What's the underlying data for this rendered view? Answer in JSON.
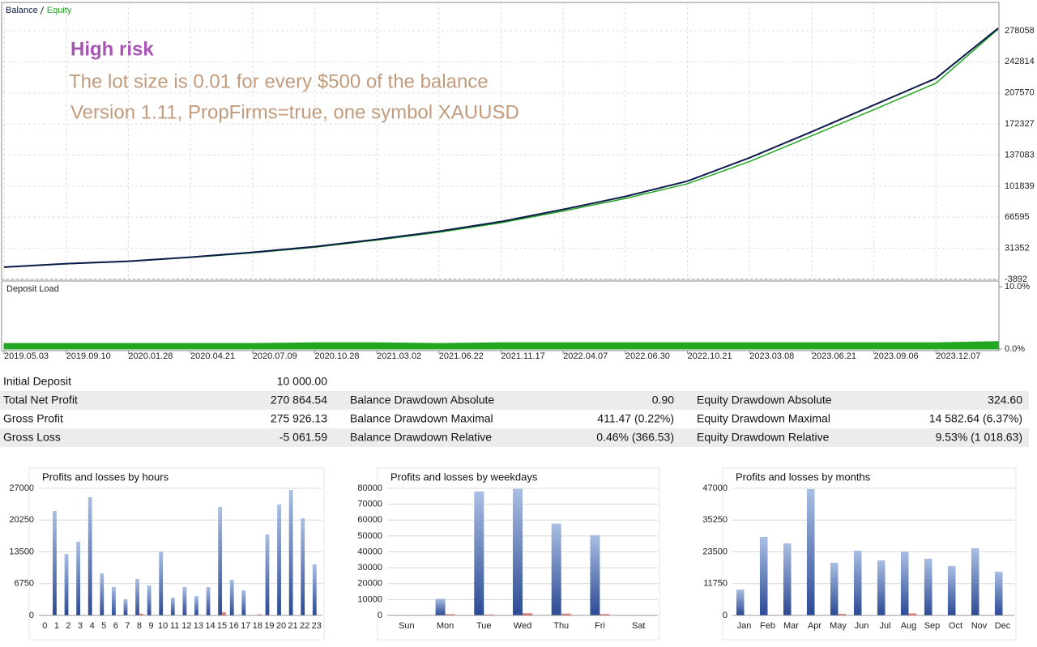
{
  "chart_data": [
    {
      "type": "line",
      "annotations": [
        "High risk",
        "The lot size is 0.01 for every $500 of the balance",
        "Version 1.11, PropFirms=true, one symbol XAUUSD"
      ],
      "categories": [
        "2019.05.03",
        "2019.09.10",
        "2020.01.28",
        "2020.04.21",
        "2020.07.09",
        "2020.10.28",
        "2021.03.02",
        "2021.06.22",
        "2021.11.17",
        "2022.04.07",
        "2022.06.30",
        "2022.10.21",
        "2023.03.08",
        "2023.06.21",
        "2023.09.06",
        "2023.12.07",
        null
      ],
      "series": [
        {
          "name": "Balance",
          "color": "#0d1b4c",
          "values": [
            10000,
            13900,
            16700,
            21300,
            26800,
            33200,
            41400,
            50600,
            61600,
            75400,
            90100,
            107500,
            134000,
            163500,
            193800,
            224100,
            280865
          ]
        },
        {
          "name": "Equity",
          "color": "#22a722",
          "values": [
            9900,
            13700,
            16400,
            20900,
            26200,
            32500,
            40600,
            49500,
            60300,
            73600,
            87800,
            104500,
            129800,
            158900,
            188500,
            218600,
            279900
          ]
        }
      ],
      "ylim": [
        -3892,
        308300
      ],
      "yticks": [
        -3892,
        31352,
        66595,
        101839,
        137083,
        172327,
        207570,
        242814,
        278058
      ],
      "grid": true
    },
    {
      "type": "area",
      "title": "Deposit Load",
      "color": "#22a722",
      "values": [
        0.9,
        0.9,
        0.9,
        0.9,
        0.9,
        1.0,
        1.0,
        0.9,
        1.0,
        1.0,
        1.0,
        1.0,
        1.0,
        1.0,
        1.0,
        1.0,
        1.2
      ],
      "ylim": [
        0,
        10
      ],
      "yticks": [
        {
          "value": 0,
          "label": "0.0%"
        },
        {
          "value": 10,
          "label": "10.0%"
        }
      ]
    },
    {
      "type": "bar",
      "title": "Profits and losses by hours",
      "categories": [
        "0",
        "1",
        "2",
        "3",
        "4",
        "5",
        "6",
        "7",
        "8",
        "9",
        "10",
        "11",
        "12",
        "13",
        "14",
        "15",
        "16",
        "17",
        "18",
        "19",
        "20",
        "21",
        "22",
        "23"
      ],
      "series": [
        {
          "color": "#2c4a94",
          "values": [
            0,
            22180,
            13070,
            15650,
            25110,
            8940,
            6020,
            3440,
            7740,
            6360,
            13590,
            3780,
            6020,
            4130,
            6020,
            23040,
            7570,
            5330,
            0,
            17200,
            23560,
            26660,
            20640,
            10830
          ]
        },
        {
          "color": "#d9534f",
          "values": [
            0,
            0,
            0,
            0,
            0,
            0,
            0,
            0,
            400,
            0,
            0,
            0,
            0,
            0,
            0,
            700,
            0,
            0,
            250,
            0,
            0,
            0,
            0,
            0
          ]
        }
      ],
      "ylim": [
        0,
        27000
      ],
      "yticks": [
        0,
        6750,
        13500,
        20250,
        27000
      ],
      "grid": true
    },
    {
      "type": "bar",
      "title": "Profits and losses by weekdays",
      "categories": [
        "Sun",
        "Mon",
        "Tue",
        "Wed",
        "Thu",
        "Fri",
        "Sat"
      ],
      "series": [
        {
          "color": "#2c4a94",
          "values": [
            0,
            10500,
            78000,
            79600,
            57800,
            50500,
            0
          ]
        },
        {
          "color": "#d9534f",
          "values": [
            0,
            800,
            600,
            1500,
            1200,
            900,
            0
          ]
        }
      ],
      "ylim": [
        0,
        80000
      ],
      "yticks": [
        0,
        10000,
        20000,
        30000,
        40000,
        50000,
        60000,
        70000,
        80000
      ],
      "grid": true
    },
    {
      "type": "bar",
      "title": "Profits and losses by months",
      "categories": [
        "Jan",
        "Feb",
        "Mar",
        "Apr",
        "May",
        "Jun",
        "Jul",
        "Aug",
        "Sep",
        "Oct",
        "Nov",
        "Dec"
      ],
      "series": [
        {
          "color": "#2c4a94",
          "values": [
            9580,
            29040,
            26640,
            46700,
            19460,
            23950,
            20360,
            23650,
            20960,
            18260,
            24850,
            16170
          ]
        },
        {
          "color": "#d9534f",
          "values": [
            0,
            0,
            0,
            0,
            600,
            0,
            0,
            800,
            0,
            0,
            0,
            0
          ]
        }
      ],
      "ylim": [
        0,
        47000
      ],
      "yticks": [
        0,
        11750,
        23500,
        35250,
        47000
      ],
      "grid": true
    }
  ],
  "stats": {
    "rows": [
      [
        "Initial Deposit",
        "10 000.00"
      ],
      [
        "Total Net Profit",
        "270 864.54",
        "Balance Drawdown Absolute",
        "0.90",
        "Equity Drawdown Absolute",
        "324.60"
      ],
      [
        "Gross Profit",
        "275 926.13",
        "Balance Drawdown Maximal",
        "411.47 (0.22%)",
        "Equity Drawdown Maximal",
        "14 582.64 (6.37%)"
      ],
      [
        "Gross Loss",
        "-5 061.59",
        "Balance Drawdown Relative",
        "0.46% (366.53)",
        "Equity Drawdown Relative",
        "9.53% (1 018.63)"
      ]
    ]
  }
}
